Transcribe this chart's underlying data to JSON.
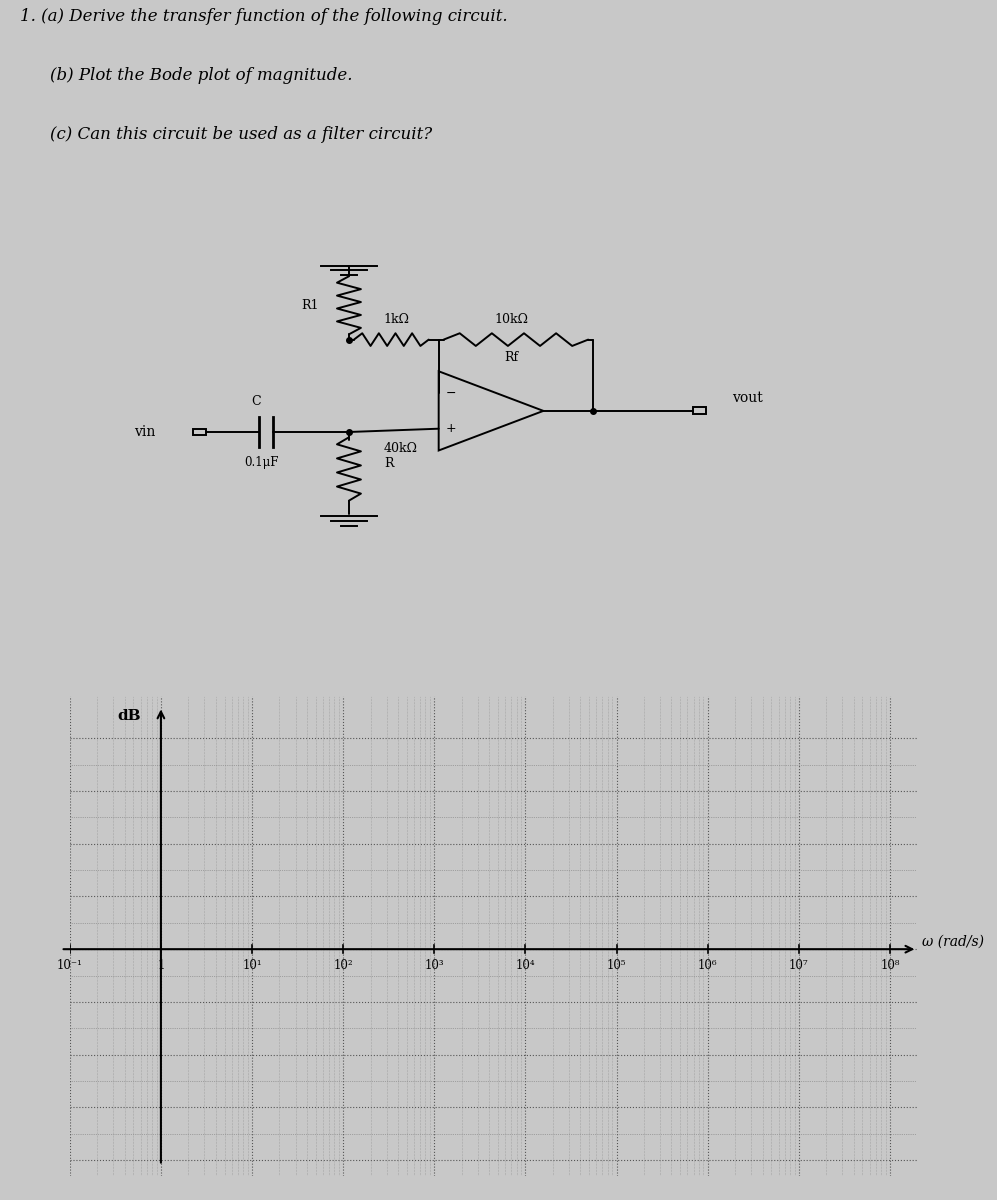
{
  "title_line1": "1. (a) Derive the transfer function of the following circuit.",
  "title_line2": "(b) Plot the Bode plot of magnitude.",
  "title_line3": "(c) Can this circuit be used as a filter circuit?",
  "bg_color": "#c8c8c8",
  "text_color": "#111111",
  "grid_color": "#555555",
  "xlabel": "ω (rad/s)",
  "ylabel": "dB",
  "x_ticks_labels": [
    "10⁻¹",
    "1",
    "10¹",
    "10²",
    "10³",
    "10⁴",
    "10⁵",
    "10⁶",
    "10⁷",
    "10⁸"
  ],
  "x_ticks_values": [
    -1,
    0,
    1,
    2,
    3,
    4,
    5,
    6,
    7,
    8
  ],
  "R1_label": "1kΩ",
  "R1_sublabel": "R1",
  "C_label": "C",
  "C_sublabel": "0.1μF",
  "Rf_label": "10kΩ",
  "Rf_sublabel": "Rf",
  "R_label": "40kΩ",
  "R_sublabel": "R",
  "vin_label": "vin",
  "vout_label": "vout",
  "font_size_text": 12,
  "font_size_circuit": 9,
  "lw": 1.4
}
